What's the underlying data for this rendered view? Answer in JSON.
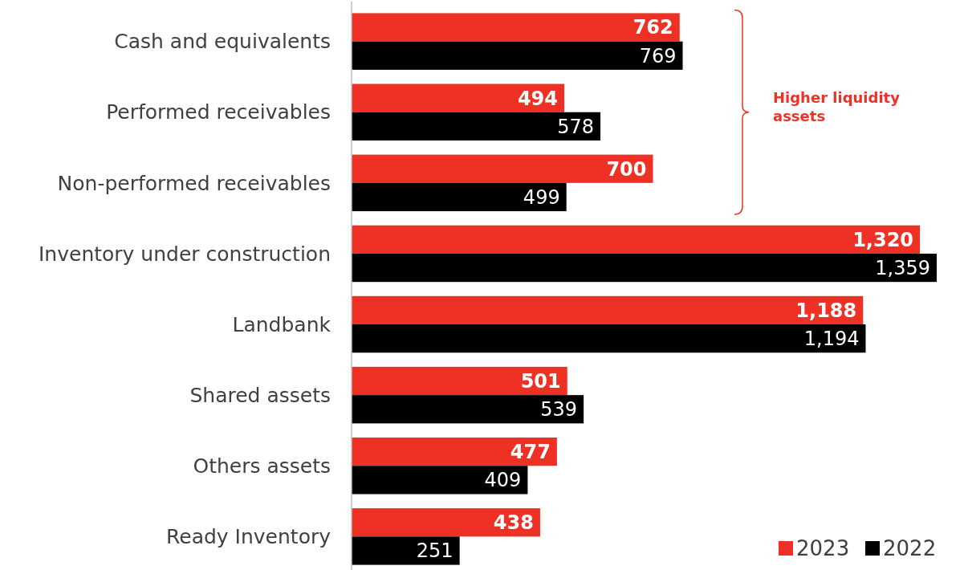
{
  "chart_data": {
    "type": "bar",
    "orientation": "horizontal",
    "categories": [
      "Cash and equivalents",
      "Performed receivables",
      "Non-performed receivables",
      "Inventory under construction",
      "Landbank",
      "Shared assets",
      "Others assets",
      "Ready Inventory"
    ],
    "series": [
      {
        "name": "2023",
        "color": "#ee3124",
        "values": [
          762,
          494,
          700,
          1320,
          1188,
          501,
          477,
          438
        ],
        "value_labels": [
          "762",
          "494",
          "700",
          "1,320",
          "1,188",
          "501",
          "477",
          "438"
        ]
      },
      {
        "name": "2022",
        "color": "#000000",
        "values": [
          769,
          578,
          499,
          1359,
          1194,
          539,
          409,
          251
        ],
        "value_labels": [
          "769",
          "578",
          "499",
          "1,359",
          "1,194",
          "539",
          "409",
          "251"
        ]
      }
    ],
    "annotations": [
      "Higher liquidity assets"
    ],
    "legend": "bottom right",
    "grid": false
  }
}
